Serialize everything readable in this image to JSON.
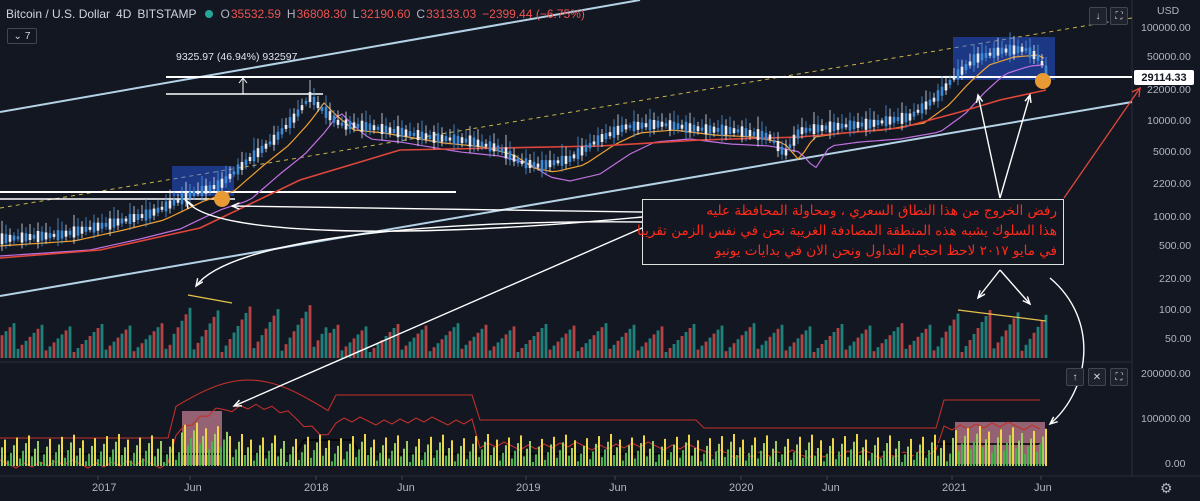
{
  "header": {
    "symbol": "Bitcoin / U.S. Dollar",
    "interval": "4D",
    "exchange": "BITSTAMP",
    "o_label": "O",
    "o_value": "35532.59",
    "h_label": "H",
    "h_value": "36808.30",
    "l_label": "L",
    "l_value": "32190.60",
    "c_label": "C",
    "c_value": "33133.03",
    "change": "−2399.44 (−6.75%)"
  },
  "indicator_count": "7",
  "currency": "USD",
  "price_axis": [
    "100000.00",
    "50000.00",
    "22000.00",
    "10000.00",
    "5000.00",
    "2200.00",
    "1000.00",
    "500.00",
    "220.00",
    "100.00",
    "50.00"
  ],
  "lower_axis": [
    "200000.00",
    "100000.00",
    "0.00"
  ],
  "current_price": "29114.33",
  "measure_label": "9325.97 (46.94%) 932597",
  "time_axis": [
    "2017",
    "Jun",
    "2018",
    "Jun",
    "2019",
    "Jun",
    "2020",
    "Jun",
    "2021",
    "Jun"
  ],
  "annotation": {
    "line1": "رفض الخروج من هذا النطاق السعري ، ومحاولة المحافظة عليه",
    "line2": "هذا السلوك يشبه هذه المنطقة المصادفة الغريبة نحن في نفس الزمن تقريبا",
    "line3": "في مايو ٢٠١٧ لاحظ احجام التداول ونحن الان في بدايات يونيو"
  },
  "colors": {
    "background": "#131722",
    "up": "#26a69a",
    "down": "#ef5350",
    "annotation_text": "#ff2a1a",
    "channel": "#b4d2e6"
  },
  "icons": [
    "arrow-down-icon",
    "maximize-icon",
    "arrow-up-icon",
    "close-icon",
    "maximize-icon",
    "settings-icon"
  ]
}
